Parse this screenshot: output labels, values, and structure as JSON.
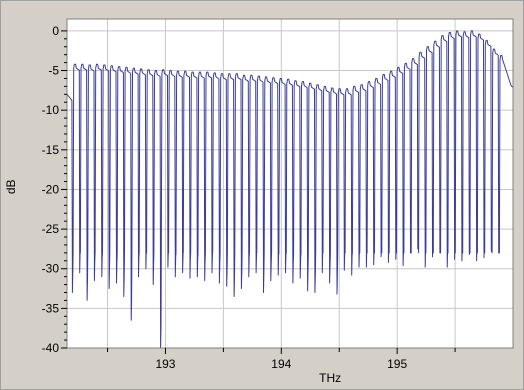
{
  "colors": {
    "panel_bg": "#d4d0c8",
    "plot_bg": "#ffffff",
    "grid": "#c8c8c8",
    "trace": "#3c3c96",
    "axis": "#000000"
  },
  "chart_data": {
    "type": "line",
    "title": "",
    "xlabel": "THz",
    "ylabel": "dB",
    "xlim": [
      192.15,
      196.0
    ],
    "ylim": [
      -40,
      1.5
    ],
    "x_ticks": [
      193,
      194,
      195
    ],
    "y_ticks": [
      0,
      -5,
      -10,
      -15,
      -20,
      -25,
      -30,
      -35,
      -40
    ],
    "grid": true,
    "legend": "none",
    "series": [
      {
        "channel_count": 59,
        "peak_db": [
          -4.2,
          -4.2,
          -4.3,
          -4.2,
          -4.3,
          -4.4,
          -4.5,
          -4.6,
          -4.7,
          -4.8,
          -4.9,
          -5.0,
          -4.9,
          -5.0,
          -5.1,
          -5.1,
          -5.2,
          -5.2,
          -5.2,
          -5.3,
          -5.4,
          -5.4,
          -5.4,
          -5.6,
          -5.6,
          -5.7,
          -5.8,
          -5.9,
          -6.0,
          -6.1,
          -6.3,
          -6.4,
          -6.6,
          -6.8,
          -7.0,
          -7.2,
          -7.3,
          -7.3,
          -7.0,
          -6.8,
          -6.4,
          -6.0,
          -5.5,
          -5.1,
          -4.6,
          -4.1,
          -3.5,
          -2.7,
          -2.0,
          -1.3,
          -0.6,
          -0.2,
          0.0,
          -0.1,
          0.0,
          -0.4,
          -1.2,
          -2.3,
          -3.1
        ],
        "trough_db": [
          -33.0,
          -30.5,
          -34.0,
          -31.5,
          -31.0,
          -32.5,
          -31.8,
          -33.5,
          -36.5,
          -31.0,
          -30.0,
          -32.0,
          -40.0,
          -29.8,
          -31.0,
          -30.5,
          -31.2,
          -31.0,
          -31.5,
          -30.5,
          -31.8,
          -32.2,
          -33.5,
          -32.5,
          -31.0,
          -30.5,
          -33.0,
          -31.5,
          -30.8,
          -30.5,
          -31.8,
          -31.2,
          -32.8,
          -33.0,
          -30.5,
          -31.8,
          -33.2,
          -30.2,
          -30.8,
          -29.8,
          -29.8,
          -29.5,
          -28.5,
          -29.2,
          -28.8,
          -29.6,
          -28.0,
          -27.5,
          -29.8,
          -28.5,
          -28.0,
          -29.8,
          -28.8,
          -29.0,
          -28.2,
          -29.0,
          -28.6,
          -27.8,
          -28.0
        ]
      }
    ]
  }
}
